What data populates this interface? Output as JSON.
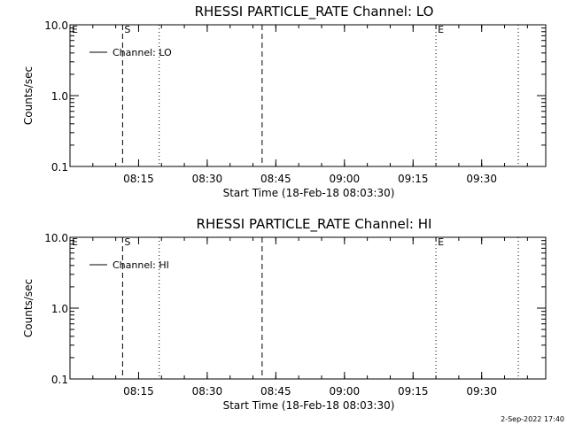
{
  "chart_data": [
    {
      "type": "line",
      "title": "RHESSI PARTICLE_RATE Channel: LO",
      "xlabel": "Start Time (18-Feb-18 08:03:30)",
      "ylabel": "Counts/sec",
      "y_scale": "log",
      "ylim": [
        0.1,
        10.0
      ],
      "y_ticks": [
        "0.1",
        "1.0",
        "10.0"
      ],
      "x_unit": "minutes since 08:03:30",
      "xlim": [
        -3.5,
        100.5
      ],
      "x_tick_positions": [
        11.5,
        26.5,
        41.5,
        56.5,
        71.5,
        86.5
      ],
      "x_ticks": [
        "08:15",
        "08:30",
        "08:45",
        "09:00",
        "09:15",
        "09:30"
      ],
      "series": [
        {
          "name": "Channel: LO",
          "values": []
        }
      ],
      "legend": "top-left",
      "grid": false,
      "markers": [
        {
          "x": 8.0,
          "style": "dashed",
          "label": "S"
        },
        {
          "x": 16.0,
          "style": "dotted",
          "label": ""
        },
        {
          "x": 38.5,
          "style": "dashed",
          "label": ""
        },
        {
          "x": 76.5,
          "style": "dotted",
          "label": "E"
        },
        {
          "x": 94.5,
          "style": "dotted",
          "label": ""
        }
      ],
      "corner_label": "E"
    },
    {
      "type": "line",
      "title": "RHESSI PARTICLE_RATE Channel: HI",
      "xlabel": "Start Time (18-Feb-18 08:03:30)",
      "ylabel": "Counts/sec",
      "y_scale": "log",
      "ylim": [
        0.1,
        10.0
      ],
      "y_ticks": [
        "0.1",
        "1.0",
        "10.0"
      ],
      "x_unit": "minutes since 08:03:30",
      "xlim": [
        -3.5,
        100.5
      ],
      "x_tick_positions": [
        11.5,
        26.5,
        41.5,
        56.5,
        71.5,
        86.5
      ],
      "x_ticks": [
        "08:15",
        "08:30",
        "08:45",
        "09:00",
        "09:15",
        "09:30"
      ],
      "series": [
        {
          "name": "Channel: HI",
          "values": []
        }
      ],
      "legend": "top-left",
      "grid": false,
      "markers": [
        {
          "x": 8.0,
          "style": "dashed",
          "label": "S"
        },
        {
          "x": 16.0,
          "style": "dotted",
          "label": ""
        },
        {
          "x": 38.5,
          "style": "dashed",
          "label": ""
        },
        {
          "x": 76.5,
          "style": "dotted",
          "label": "E"
        },
        {
          "x": 94.5,
          "style": "dotted",
          "label": ""
        }
      ],
      "corner_label": "E"
    }
  ],
  "timestamp": "2-Sep-2022 17:40"
}
